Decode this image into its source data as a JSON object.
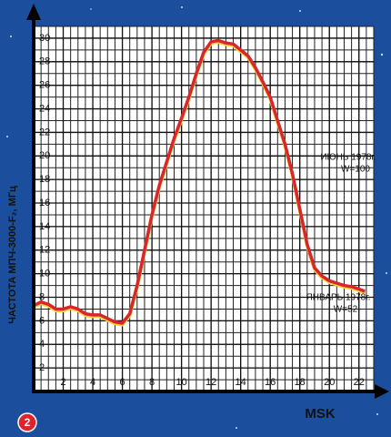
{
  "chart_data": {
    "type": "line",
    "y_label": "ЧАСТОТА МПЧ-3000-F₂, МГц",
    "x_label": "MSK",
    "figure_number": "2",
    "x": [
      0,
      0.5,
      1,
      1.5,
      2,
      2.5,
      3,
      3.5,
      4,
      4.5,
      5,
      5.5,
      6,
      6.5,
      7,
      7.5,
      8,
      8.5,
      9,
      9.5,
      10,
      10.5,
      11,
      11.5,
      12,
      12.5,
      13,
      13.5,
      14,
      14.5,
      15,
      15.5,
      16,
      16.5,
      17,
      17.5,
      18,
      18.5,
      19,
      19.5,
      20,
      20.5,
      21,
      21.5,
      22,
      22.4
    ],
    "values": [
      7.3,
      7.6,
      7.4,
      7.0,
      7.0,
      7.2,
      7.0,
      6.6,
      6.5,
      6.5,
      6.2,
      5.9,
      5.8,
      6.6,
      9,
      12,
      15,
      17.5,
      19.5,
      21.5,
      23.2,
      25,
      27,
      28.8,
      29.7,
      29.8,
      29.6,
      29.5,
      29,
      28.5,
      27.5,
      26.3,
      25,
      23,
      21,
      18.5,
      15.5,
      12.5,
      10.5,
      9.8,
      9.4,
      9.2,
      9.0,
      8.9,
      8.7,
      8.5
    ],
    "color": "#d8262c",
    "xlim": [
      0,
      23
    ],
    "ylim": [
      0,
      31
    ],
    "xticks": [
      2,
      4,
      6,
      8,
      10,
      12,
      14,
      16,
      18,
      20,
      22
    ],
    "yticks": [
      2,
      4,
      6,
      8,
      10,
      12,
      14,
      16,
      18,
      20,
      22,
      24,
      26,
      28,
      30
    ],
    "grid": true,
    "annotations": [
      {
        "lines": [
          "ИЮНЬ 1978г.",
          "W=100"
        ]
      },
      {
        "lines": [
          "ЯНВАРЬ 1978г.",
          "W=52"
        ]
      }
    ]
  }
}
